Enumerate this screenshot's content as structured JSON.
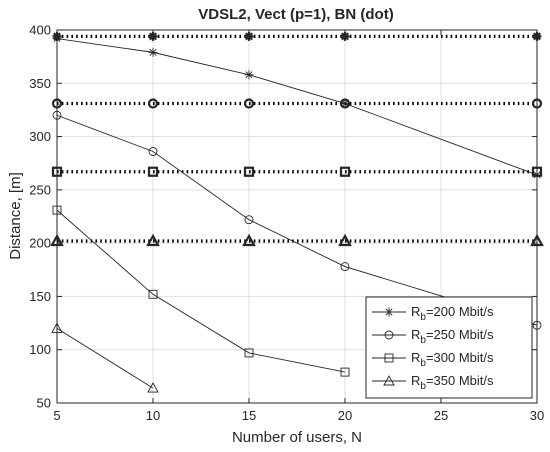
{
  "chart_data": {
    "type": "line",
    "title": "VDSL2, Vect (p=1), BN (dot)",
    "xlabel": "Number of users, N",
    "ylabel": "Distance, [m]",
    "xlim": [
      5,
      30
    ],
    "ylim": [
      50,
      400
    ],
    "xticks": [
      5,
      10,
      15,
      20,
      25,
      30
    ],
    "yticks": [
      50,
      100,
      150,
      200,
      250,
      300,
      350,
      400
    ],
    "grid": true,
    "legend_position": "bottom-right",
    "series": [
      {
        "name": "Rb=200 Mbit/s",
        "legend": {
          "base": "R",
          "sub": "b",
          "suffix": "=200 Mbit/s"
        },
        "marker": "asterisk",
        "x": [
          5,
          10,
          15,
          20,
          30
        ],
        "values": [
          392,
          379,
          358,
          331,
          264
        ],
        "bn_dot": {
          "x": [
            5,
            10,
            15,
            20,
            30
          ],
          "values": [
            394,
            394,
            394,
            394,
            394
          ]
        }
      },
      {
        "name": "Rb=250 Mbit/s",
        "legend": {
          "base": "R",
          "sub": "b",
          "suffix": "=250 Mbit/s"
        },
        "marker": "circle",
        "x": [
          5,
          10,
          15,
          20,
          30
        ],
        "values": [
          320,
          286,
          222,
          178,
          123
        ],
        "bn_dot": {
          "x": [
            5,
            10,
            15,
            20,
            30
          ],
          "values": [
            331,
            331,
            331,
            331,
            331
          ]
        }
      },
      {
        "name": "Rb=300 Mbit/s",
        "legend": {
          "base": "R",
          "sub": "b",
          "suffix": "=300 Mbit/s"
        },
        "marker": "square",
        "x": [
          5,
          10,
          15,
          20
        ],
        "values": [
          231,
          152,
          97,
          79
        ],
        "bn_dot": {
          "x": [
            5,
            10,
            15,
            20,
            30
          ],
          "values": [
            267,
            267,
            267,
            267,
            267
          ]
        }
      },
      {
        "name": "Rb=350 Mbit/s",
        "legend": {
          "base": "R",
          "sub": "b",
          "suffix": "=350 Mbit/s"
        },
        "marker": "triangle",
        "x": [
          5,
          10
        ],
        "values": [
          120,
          64
        ],
        "bn_dot": {
          "x": [
            5,
            10,
            15,
            20,
            30
          ],
          "values": [
            202,
            202,
            202,
            202,
            202
          ]
        }
      }
    ]
  }
}
